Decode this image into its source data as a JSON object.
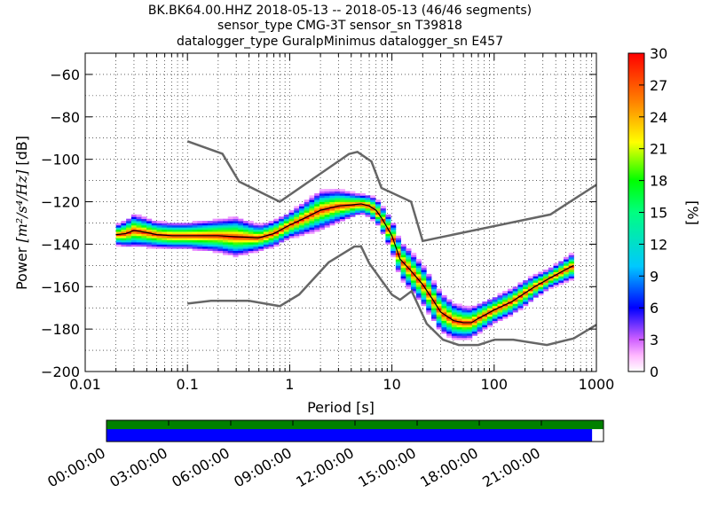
{
  "title_lines": [
    "BK.BK64.00.HHZ   2018-05-13 -- 2018-05-13  (46/46 segments)",
    "sensor_type CMG-3T sensor_sn T39818",
    "datalogger_type GuralpMinimus datalogger_sn E457"
  ],
  "colorbar": {
    "label": "[%]",
    "ticks": [
      "0",
      "3",
      "6",
      "9",
      "12",
      "15",
      "18",
      "21",
      "24",
      "27",
      "30"
    ],
    "range": [
      0,
      30
    ],
    "colormap": "pqlx"
  },
  "timeline": {
    "ticks": [
      "00:00:00",
      "03:00:00",
      "06:00:00",
      "09:00:00",
      "12:00:00",
      "15:00:00",
      "18:00:00",
      "21:00:00"
    ],
    "coverage_color": "#008000",
    "data_color": "#0000ff",
    "data_fraction": 0.977
  },
  "colors": {
    "noise_model": "#666666",
    "mean_curve": "#000000",
    "grid": "#000000"
  },
  "chart_data": {
    "type": "heatmap",
    "xlabel": "Period [s]",
    "ylabel_prefix": "Power ",
    "ylabel_math": "[m²/s⁴/Hz]",
    "ylabel_suffix": " [dB]",
    "xscale": "log",
    "xlim": [
      0.01,
      1000
    ],
    "ylim": [
      -200,
      -50
    ],
    "xticks": [
      "0.01",
      "0.1",
      "1",
      "10",
      "100",
      "1000"
    ],
    "yticks": [
      "−60",
      "−80",
      "−100",
      "−120",
      "−140",
      "−160",
      "−180",
      "−200"
    ],
    "grid": true,
    "new_high_noise_model": [
      [
        0.1,
        -91.5
      ],
      [
        0.22,
        -97.4
      ],
      [
        0.32,
        -110.5
      ],
      [
        0.8,
        -120
      ],
      [
        3.8,
        -97.5
      ],
      [
        4.6,
        -96.5
      ],
      [
        6.3,
        -101
      ],
      [
        7.9,
        -113.5
      ],
      [
        15.4,
        -120
      ],
      [
        20,
        -138.5
      ],
      [
        354.8,
        -126
      ],
      [
        1000,
        -112
      ]
    ],
    "new_low_noise_model": [
      [
        0.1,
        -168
      ],
      [
        0.17,
        -166.7
      ],
      [
        0.4,
        -166.7
      ],
      [
        0.8,
        -169.2
      ],
      [
        1.24,
        -163.7
      ],
      [
        2.4,
        -148.6
      ],
      [
        4.3,
        -141.1
      ],
      [
        5.0,
        -141.1
      ],
      [
        6.0,
        -149
      ],
      [
        10.0,
        -163.8
      ],
      [
        12.0,
        -166.2
      ],
      [
        15.6,
        -162.1
      ],
      [
        21.9,
        -177.5
      ],
      [
        31.6,
        -185
      ],
      [
        45,
        -187.5
      ],
      [
        70,
        -187.5
      ],
      [
        101,
        -185
      ],
      [
        154,
        -185
      ],
      [
        328,
        -187.5
      ],
      [
        600,
        -184.4
      ],
      [
        1000,
        -178
      ]
    ],
    "mean_psd": [
      [
        0.02,
        -135.5
      ],
      [
        0.025,
        -135
      ],
      [
        0.03,
        -133.5
      ],
      [
        0.04,
        -134.5
      ],
      [
        0.05,
        -135.5
      ],
      [
        0.07,
        -136
      ],
      [
        0.1,
        -136
      ],
      [
        0.15,
        -136
      ],
      [
        0.2,
        -136
      ],
      [
        0.3,
        -136.5
      ],
      [
        0.5,
        -137
      ],
      [
        0.7,
        -135
      ],
      [
        1.0,
        -131
      ],
      [
        1.5,
        -127
      ],
      [
        2.0,
        -124
      ],
      [
        3.0,
        -122
      ],
      [
        4.0,
        -121.5
      ],
      [
        5.0,
        -121
      ],
      [
        6.0,
        -122
      ],
      [
        7.0,
        -124
      ],
      [
        8.0,
        -128
      ],
      [
        10.0,
        -136
      ],
      [
        12.0,
        -147
      ],
      [
        15.0,
        -152
      ],
      [
        20.0,
        -159
      ],
      [
        25.0,
        -166
      ],
      [
        30.0,
        -172
      ],
      [
        40.0,
        -176
      ],
      [
        50.0,
        -177
      ],
      [
        60.0,
        -177
      ],
      [
        70.0,
        -175
      ],
      [
        100.0,
        -171
      ],
      [
        150.0,
        -167
      ],
      [
        200.0,
        -163
      ],
      [
        250.0,
        -160
      ],
      [
        350.0,
        -156
      ],
      [
        500.0,
        -152
      ],
      [
        600.0,
        -150
      ]
    ],
    "psd_spread_db": [
      [
        0.02,
        3
      ],
      [
        0.03,
        5
      ],
      [
        0.05,
        4
      ],
      [
        0.1,
        4
      ],
      [
        0.2,
        5
      ],
      [
        0.3,
        6
      ],
      [
        0.5,
        4
      ],
      [
        1.0,
        4
      ],
      [
        2.0,
        6
      ],
      [
        3.0,
        5
      ],
      [
        5.0,
        3
      ],
      [
        8.0,
        4
      ],
      [
        10.0,
        5
      ],
      [
        15.0,
        6
      ],
      [
        20.0,
        6
      ],
      [
        30.0,
        6
      ],
      [
        50.0,
        5
      ],
      [
        100.0,
        4
      ],
      [
        200.0,
        4
      ],
      [
        350.0,
        3
      ],
      [
        600.0,
        4
      ]
    ]
  }
}
